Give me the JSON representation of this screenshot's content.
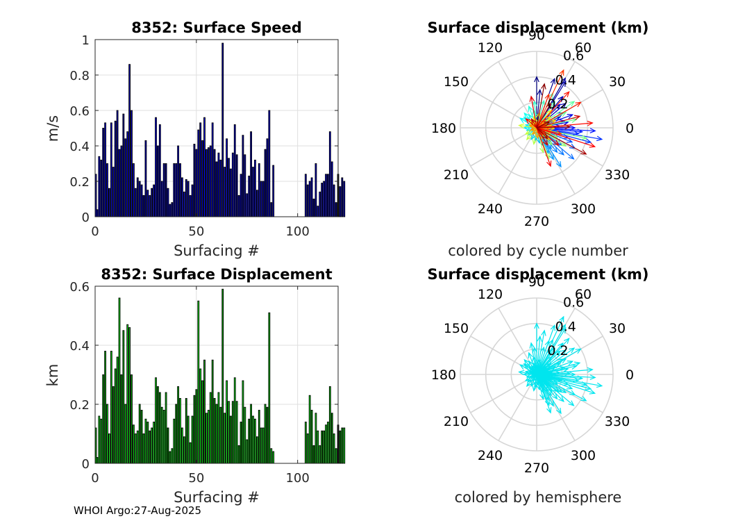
{
  "footer": "WHOI Argo:27-Aug-2025",
  "chart_data": [
    {
      "type": "bar",
      "title": "8352: Surface Speed",
      "xlabel": "Surfacing #",
      "ylabel": "m/s",
      "xlim": [
        0,
        120
      ],
      "ylim": [
        0,
        1
      ],
      "xticks": [
        "0",
        "50",
        "100"
      ],
      "yticks": [
        "0",
        "0.2",
        "0.4",
        "0.6",
        "0.8",
        "1"
      ],
      "grid": true,
      "color_scheme": "blue",
      "missing_surfacings": [
        89,
        103
      ],
      "values": [
        0.24,
        0.04,
        0.34,
        0.32,
        0.5,
        0.53,
        0.3,
        0.16,
        0.53,
        0.28,
        0.54,
        0.6,
        0.38,
        0.4,
        0.58,
        0.44,
        0.48,
        0.86,
        0.6,
        0.3,
        0.16,
        0.22,
        0.2,
        0.18,
        0.12,
        0.43,
        0.15,
        0.12,
        0.16,
        0.18,
        0.56,
        0.4,
        0.52,
        0.2,
        0.3,
        0.3,
        0.16,
        0.07,
        0.08,
        0.3,
        0.3,
        0.4,
        0.3,
        0.22,
        0.14,
        0.21,
        0.2,
        0.12,
        0.18,
        0.41,
        0.38,
        0.49,
        0.53,
        0.43,
        0.56,
        0.38,
        0.39,
        0.4,
        0.53,
        0.38,
        0.31,
        0.36,
        0.32,
        0.98,
        0.28,
        0.44,
        0.33,
        0.27,
        0.36,
        0.52,
        0.35,
        0.12,
        0.24,
        0.46,
        0.35,
        0.13,
        0.23,
        0.48,
        0.28,
        0.32,
        0.15,
        0.3,
        0.2,
        0.2,
        0.38,
        0.44,
        0.6,
        0.08,
        0.29,
        null,
        null,
        null,
        null,
        null,
        null,
        null,
        null,
        null,
        null,
        null,
        null,
        null,
        null,
        null,
        0.24,
        0.18,
        0.2,
        0.22,
        0.1,
        0.3,
        0.06,
        0.14,
        0.19,
        0.2,
        0.24,
        0.24,
        0.48,
        0.31,
        0.18,
        0.08,
        0.24,
        0.17,
        0.22,
        0.2
      ]
    },
    {
      "type": "bar",
      "title": "8352: Surface Displacement",
      "xlabel": "Surfacing #",
      "ylabel": "km",
      "xlim": [
        0,
        120
      ],
      "ylim": [
        0,
        0.6
      ],
      "xticks": [
        "0",
        "50",
        "100"
      ],
      "yticks": [
        "0",
        "0.2",
        "0.4",
        "0.6"
      ],
      "grid": true,
      "color_scheme": "green",
      "values": [
        0.12,
        0.02,
        0.16,
        0.15,
        0.3,
        0.38,
        0.2,
        0.1,
        0.38,
        0.26,
        0.32,
        0.36,
        0.56,
        0.3,
        0.45,
        0.2,
        0.47,
        0.46,
        0.3,
        0.13,
        0.1,
        0.11,
        0.2,
        0.18,
        0.1,
        0.15,
        0.14,
        0.11,
        0.12,
        0.14,
        0.29,
        0.26,
        0.24,
        0.19,
        0.18,
        0.24,
        0.12,
        0.04,
        0.05,
        0.15,
        0.2,
        0.26,
        0.22,
        0.12,
        0.09,
        0.22,
        0.16,
        0.07,
        0.16,
        0.23,
        0.25,
        0.55,
        0.32,
        0.28,
        0.35,
        0.17,
        0.18,
        0.24,
        0.35,
        0.22,
        0.2,
        0.24,
        0.19,
        0.59,
        0.17,
        0.28,
        0.21,
        0.16,
        0.21,
        0.29,
        0.21,
        0.06,
        0.14,
        0.28,
        0.19,
        0.08,
        0.15,
        0.2,
        0.16,
        0.15,
        0.09,
        0.18,
        0.12,
        0.12,
        0.2,
        0.19,
        0.51,
        0.05,
        0.04,
        null,
        null,
        null,
        null,
        null,
        null,
        null,
        null,
        null,
        null,
        null,
        null,
        null,
        null,
        null,
        0.14,
        0.1,
        0.23,
        0.18,
        0.06,
        0.17,
        0.11,
        0.06,
        0.11,
        0.11,
        0.13,
        0.14,
        0.26,
        0.17,
        0.1,
        0.05,
        0.13,
        0.11,
        0.12,
        0.12
      ]
    },
    {
      "type": "polar-compass",
      "title": "Surface displacement (km)",
      "caption": "colored by cycle number",
      "color_scheme": "cycle-colormap",
      "rlim": [
        0,
        0.6
      ],
      "rticks": [
        "0.2",
        "0.4",
        "0.6"
      ],
      "angle_labels": [
        "0",
        "30",
        "60",
        "90",
        "120",
        "150",
        "180",
        "210",
        "240",
        "270",
        "300",
        "330"
      ],
      "vectors_deg_km": [
        [
          90,
          0.4
        ],
        [
          85,
          0.3
        ],
        [
          70,
          0.41
        ],
        [
          60,
          0.45
        ],
        [
          58,
          0.43
        ],
        [
          50,
          0.32
        ],
        [
          45,
          0.26
        ],
        [
          40,
          0.3
        ],
        [
          30,
          0.24
        ],
        [
          25,
          0.2
        ],
        [
          20,
          0.3
        ],
        [
          15,
          0.22
        ],
        [
          10,
          0.25
        ],
        [
          5,
          0.18
        ],
        [
          0,
          0.3
        ],
        [
          -3,
          0.46
        ],
        [
          -5,
          0.36
        ],
        [
          -8,
          0.33
        ],
        [
          -10,
          0.52
        ],
        [
          -15,
          0.44
        ],
        [
          -18,
          0.26
        ],
        [
          -22,
          0.3
        ],
        [
          -28,
          0.34
        ],
        [
          -35,
          0.24
        ],
        [
          -40,
          0.38
        ],
        [
          -45,
          0.3
        ],
        [
          -50,
          0.25
        ],
        [
          -55,
          0.2
        ],
        [
          -58,
          0.36
        ],
        [
          -62,
          0.28
        ],
        [
          -65,
          0.22
        ],
        [
          -70,
          0.15
        ],
        [
          -80,
          0.12
        ],
        [
          -95,
          0.1
        ],
        [
          -115,
          0.1
        ],
        [
          -140,
          0.09
        ],
        [
          -165,
          0.08
        ],
        [
          180,
          0.1
        ],
        [
          165,
          0.09
        ],
        [
          150,
          0.15
        ],
        [
          140,
          0.13
        ],
        [
          130,
          0.15
        ],
        [
          120,
          0.12
        ],
        [
          110,
          0.18
        ],
        [
          100,
          0.14
        ],
        [
          95,
          0.21
        ],
        [
          75,
          0.22
        ],
        [
          65,
          0.3
        ],
        [
          55,
          0.25
        ],
        [
          35,
          0.36
        ],
        [
          28,
          0.26
        ],
        [
          12,
          0.32
        ],
        [
          -12,
          0.4
        ],
        [
          -25,
          0.18
        ],
        [
          -32,
          0.27
        ],
        [
          -48,
          0.18
        ],
        [
          -68,
          0.26
        ],
        [
          -75,
          0.2
        ],
        [
          -100,
          0.13
        ],
        [
          -130,
          0.12
        ],
        [
          -150,
          0.1
        ],
        [
          172,
          0.14
        ],
        [
          155,
          0.06
        ],
        [
          135,
          0.08
        ],
        [
          125,
          0.05
        ],
        [
          105,
          0.09
        ],
        [
          80,
          0.12
        ],
        [
          50,
          0.18
        ],
        [
          38,
          0.14
        ],
        [
          22,
          0.16
        ],
        [
          8,
          0.12
        ],
        [
          -2,
          0.14
        ],
        [
          -20,
          0.12
        ],
        [
          -42,
          0.14
        ],
        [
          -60,
          0.1
        ],
        [
          -85,
          0.08
        ],
        [
          -120,
          0.06
        ],
        [
          -160,
          0.05
        ],
        [
          160,
          0.06
        ],
        [
          118,
          0.07
        ],
        [
          88,
          0.05
        ],
        [
          42,
          0.09
        ],
        [
          18,
          0.08
        ],
        [
          -6,
          0.1
        ],
        [
          -30,
          0.08
        ],
        [
          -52,
          0.07
        ],
        [
          65,
          0.5
        ],
        [
          -14,
          0.2
        ],
        [
          70,
          0.28
        ],
        [
          30,
          0.4
        ],
        [
          48,
          0.38
        ],
        [
          5,
          0.44
        ],
        [
          -18,
          0.48
        ],
        [
          -70,
          0.32
        ],
        [
          140,
          0.11
        ],
        [
          100,
          0.25
        ],
        [
          -38,
          0.22
        ],
        [
          15,
          0.35
        ],
        [
          -58,
          0.16
        ],
        [
          120,
          0.08
        ],
        [
          60,
          0.22
        ],
        [
          -28,
          0.44
        ],
        [
          2,
          0.26
        ],
        [
          -45,
          0.12
        ],
        [
          80,
          0.35
        ],
        [
          25,
          0.11
        ]
      ]
    },
    {
      "type": "polar-compass",
      "title": "Surface displacement (km)",
      "caption": "colored by hemisphere",
      "color_scheme": "cyan",
      "color": "#00e5ee",
      "rlim": [
        0,
        0.6
      ],
      "rticks": [
        "0.2",
        "0.4",
        "0.6"
      ],
      "angle_labels": [
        "0",
        "30",
        "60",
        "90",
        "120",
        "150",
        "180",
        "210",
        "240",
        "270",
        "300",
        "330"
      ],
      "vectors_deg_km": "same as the plot above"
    }
  ]
}
